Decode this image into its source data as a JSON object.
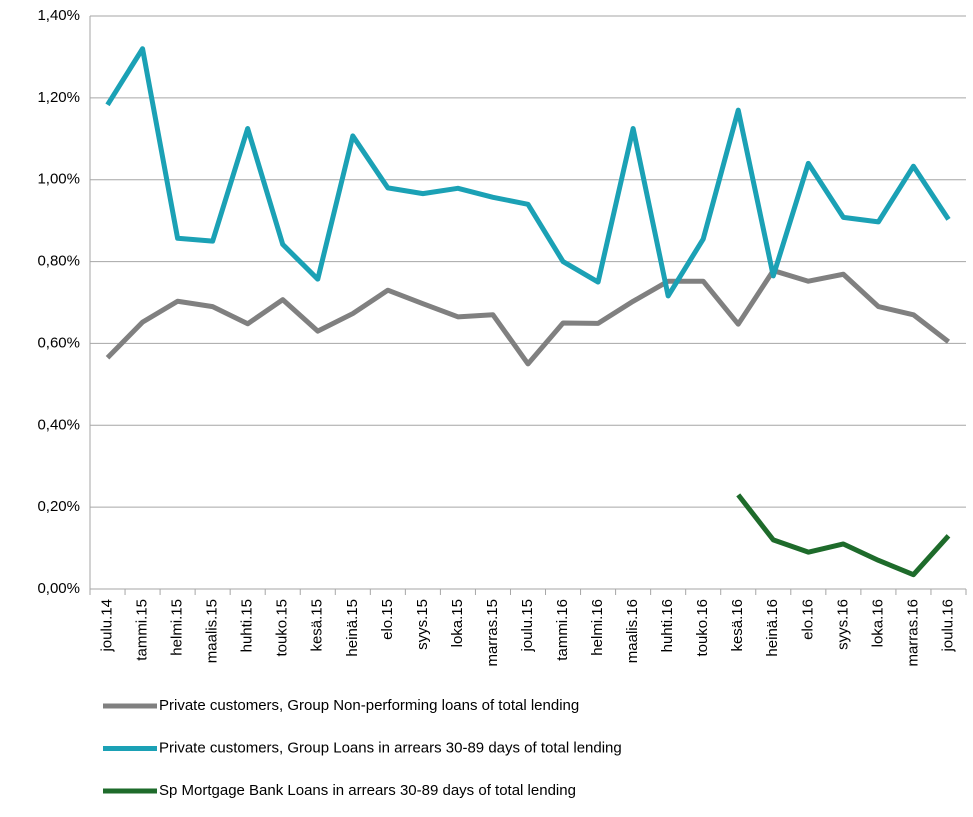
{
  "chart_data": {
    "type": "line",
    "categories": [
      "joulu.14",
      "tammi.15",
      "helmi.15",
      "maalis.15",
      "huhti.15",
      "touko.15",
      "kesä.15",
      "heinä.15",
      "elo.15",
      "syys.15",
      "loka.15",
      "marras.15",
      "joulu.15",
      "tammi.16",
      "helmi.16",
      "maalis.16",
      "huhti.16",
      "touko.16",
      "kesä.16",
      "heinä.16",
      "elo.16",
      "syys.16",
      "loka.16",
      "marras.16",
      "joulu.16"
    ],
    "series": [
      {
        "name": "Private customers, Group Non-performing loans of total lending",
        "color": "#808080",
        "values": [
          0.565,
          0.652,
          0.703,
          0.69,
          0.648,
          0.707,
          0.63,
          0.673,
          0.73,
          0.697,
          0.665,
          0.67,
          0.55,
          0.65,
          0.649,
          0.703,
          0.752,
          0.752,
          0.647,
          0.778,
          0.752,
          0.769,
          0.69,
          0.67,
          0.604
        ]
      },
      {
        "name": "Private customers, Group Loans in arrears 30-89 days of total lending",
        "color": "#1ba1b5",
        "values": [
          1.183,
          1.32,
          0.857,
          0.85,
          1.125,
          0.842,
          0.757,
          1.107,
          0.98,
          0.966,
          0.979,
          0.957,
          0.94,
          0.8,
          0.75,
          1.125,
          0.716,
          0.855,
          1.17,
          0.765,
          1.04,
          0.908,
          0.897,
          1.033,
          0.903
        ]
      },
      {
        "name": "Sp Mortgage Bank Loans in arrears 30-89 days of total lending",
        "color": "#1e6b2b",
        "values": [
          null,
          null,
          null,
          null,
          null,
          null,
          null,
          null,
          null,
          null,
          null,
          null,
          null,
          null,
          null,
          null,
          null,
          null,
          0.23,
          0.12,
          0.09,
          0.11,
          0.07,
          0.035,
          0.13
        ]
      }
    ],
    "ylim": [
      0,
      1.4
    ],
    "yticks": [
      {
        "value": 0,
        "label": "0,00%"
      },
      {
        "value": 0.2,
        "label": "0,20%"
      },
      {
        "value": 0.4,
        "label": "0,40%"
      },
      {
        "value": 0.6,
        "label": "0,60%"
      },
      {
        "value": 0.8,
        "label": "0,80%"
      },
      {
        "value": 1.0,
        "label": "1,00%"
      },
      {
        "value": 1.2,
        "label": "1,20%"
      },
      {
        "value": 1.4,
        "label": "1,40%"
      }
    ],
    "grid": true
  }
}
